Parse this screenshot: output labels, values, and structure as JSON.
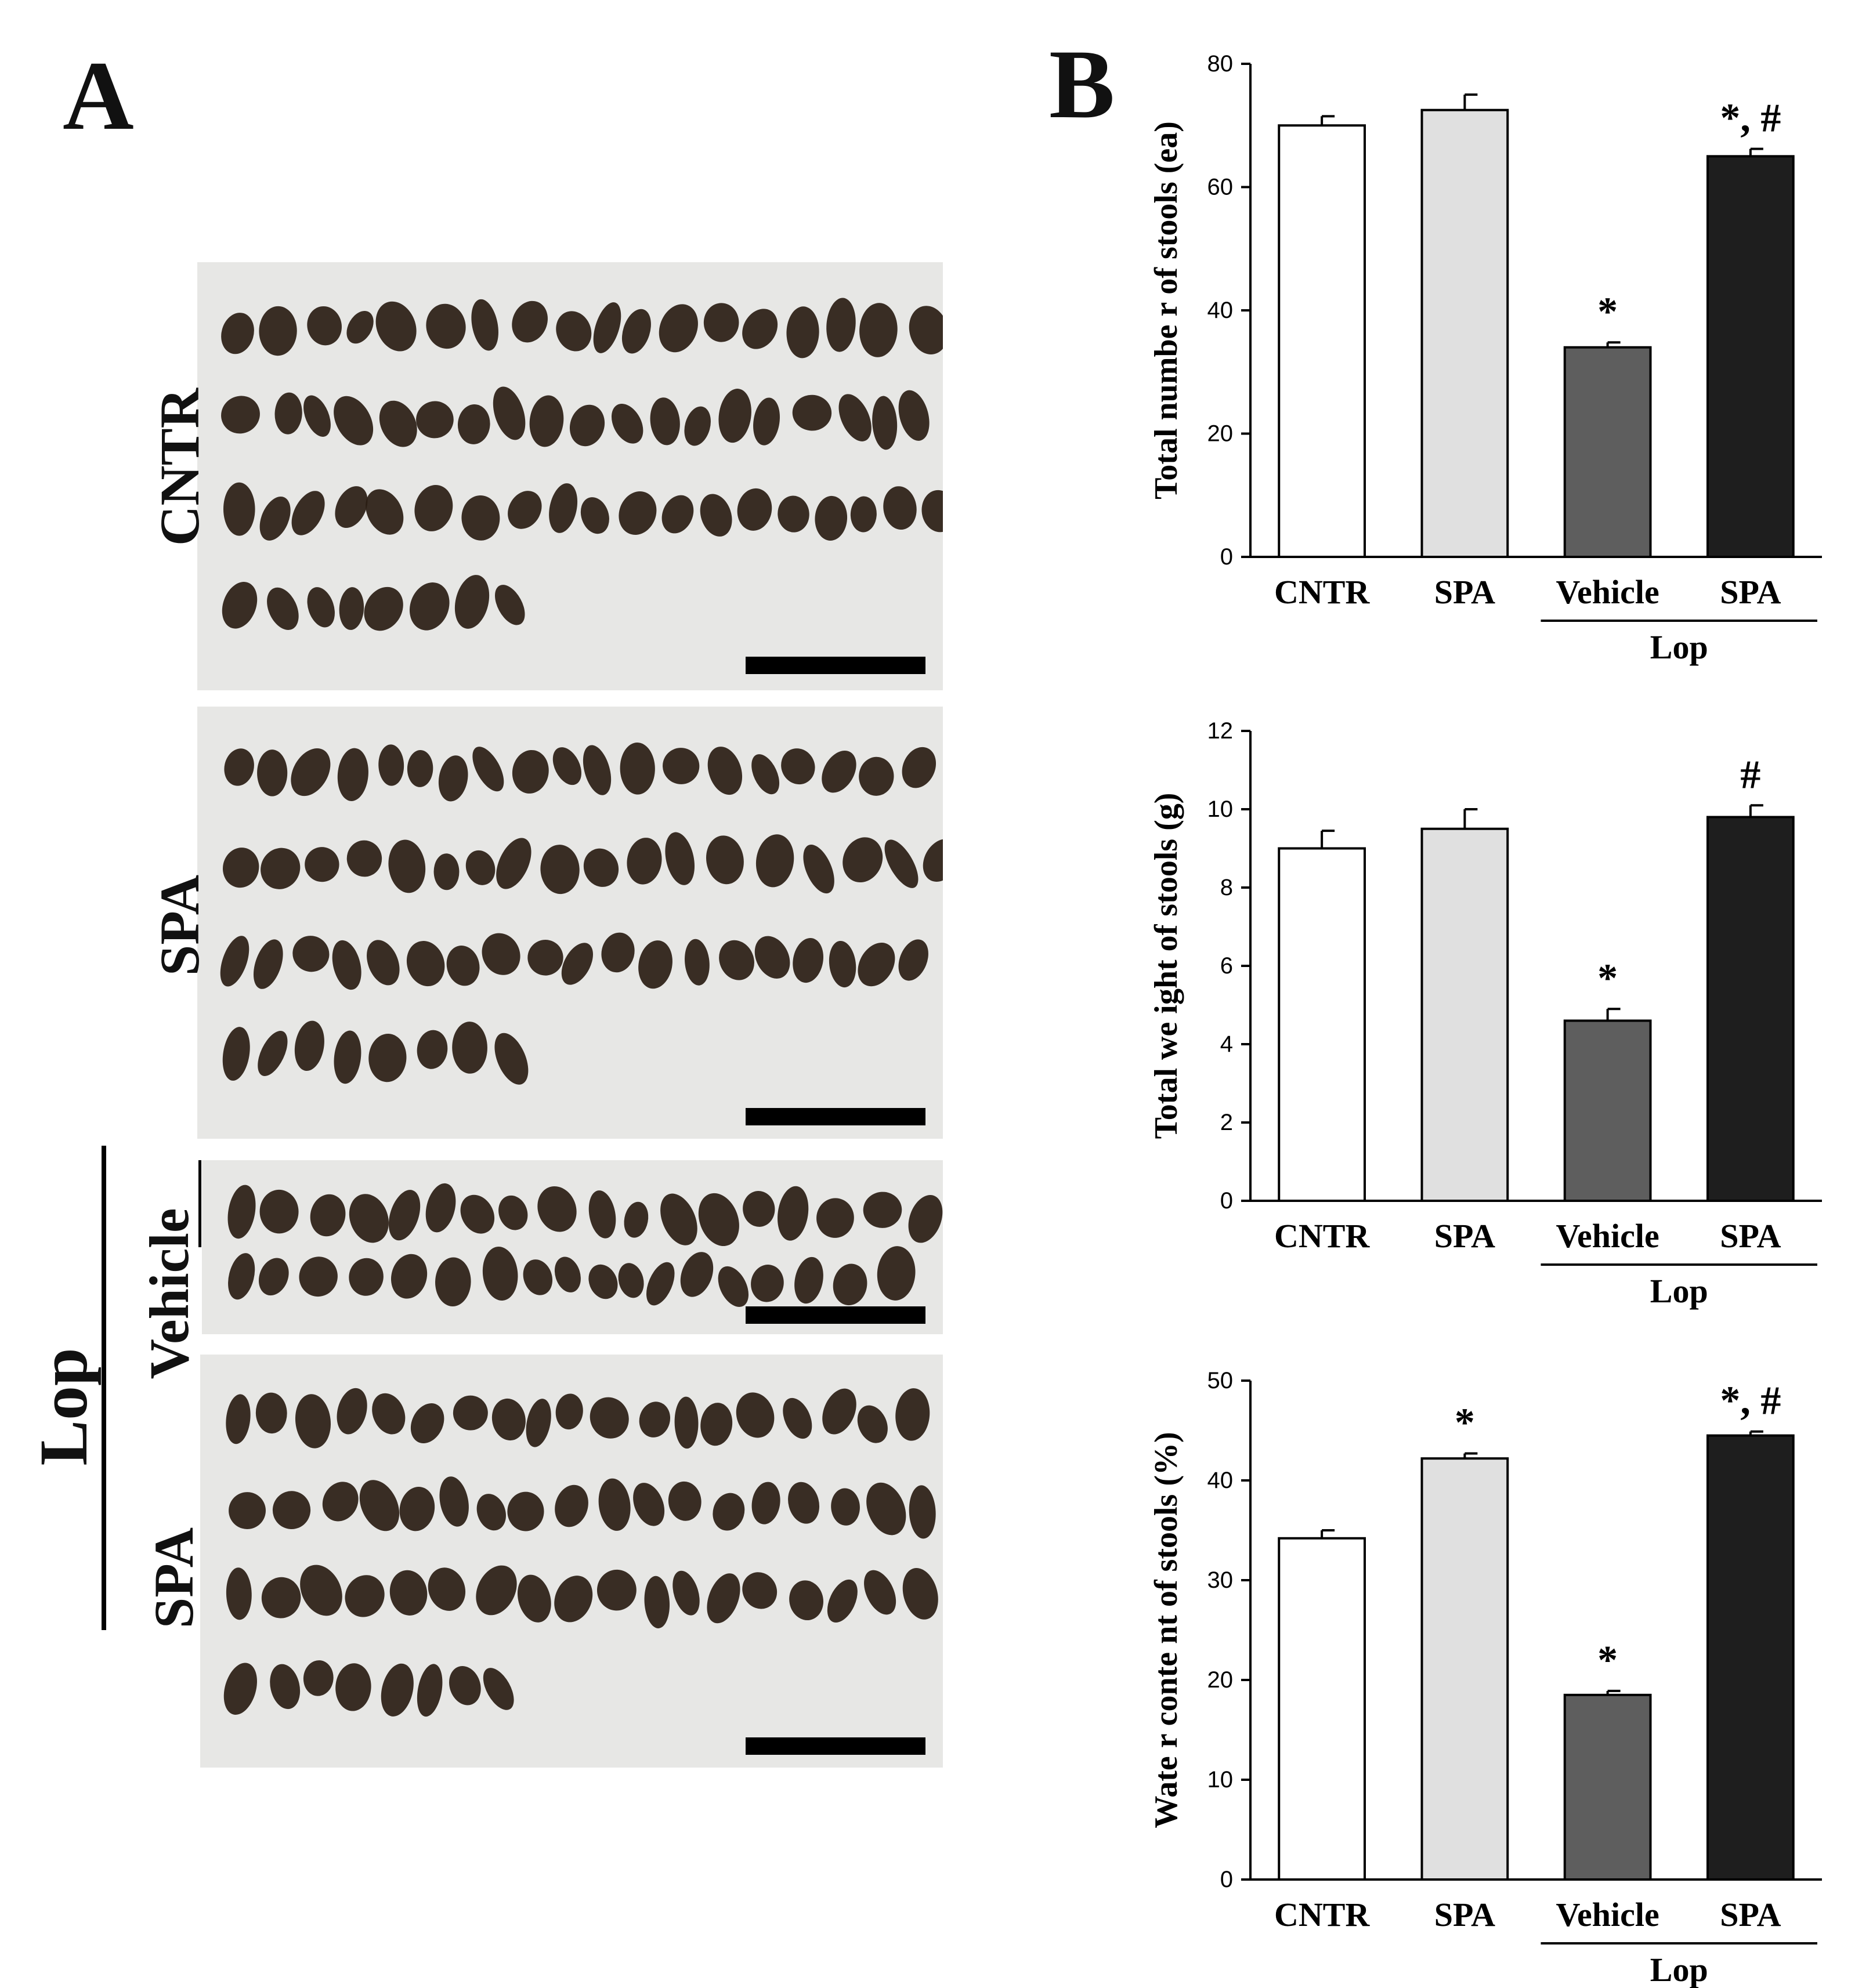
{
  "panel_labels": {
    "a": "A",
    "b": "B"
  },
  "panel_a": {
    "rows": [
      {
        "label": "CNTR"
      },
      {
        "label": "SPA"
      },
      {
        "label": "Vehicle"
      },
      {
        "label": "SPA"
      }
    ],
    "group_label": "Lop"
  },
  "colors": {
    "CNTR": "#ffffff",
    "SPA": "#e0e0e0",
    "Vehicle": "#5e5e5e",
    "LopSPA": "#1e1e1e",
    "stool": "#2a1d14",
    "photo_bg": "#e7e7e5"
  },
  "chart_data": [
    {
      "type": "bar",
      "title": "",
      "ylabel": "Total numbe r of stools (ea)",
      "xlabel": "",
      "ylim": [
        0,
        80
      ],
      "yticks": [
        "0",
        "20",
        "40",
        "60",
        "80"
      ],
      "categories": [
        "CNTR",
        "SPA",
        "Vehicle",
        "SPA"
      ],
      "group_label": "Lop",
      "values": [
        70,
        72.5,
        34,
        65
      ],
      "errors": [
        1.5,
        2.5,
        0.8,
        1.2
      ],
      "annotations": [
        "",
        "",
        "*",
        "*, #"
      ]
    },
    {
      "type": "bar",
      "title": "",
      "ylabel": "Total we ight of stools (g)",
      "xlabel": "",
      "ylim": [
        0,
        12
      ],
      "yticks": [
        "0",
        "2",
        "4",
        "6",
        "8",
        "10",
        "12"
      ],
      "categories": [
        "CNTR",
        "SPA",
        "Vehicle",
        "SPA"
      ],
      "group_label": "Lop",
      "values": [
        9.0,
        9.5,
        4.6,
        9.8
      ],
      "errors": [
        0.45,
        0.5,
        0.3,
        0.3
      ],
      "annotations": [
        "",
        "",
        "*",
        "#"
      ]
    },
    {
      "type": "bar",
      "title": "",
      "ylabel": "Wate r conte nt of stools (%)",
      "xlabel": "",
      "ylim": [
        0,
        50
      ],
      "yticks": [
        "0",
        "10",
        "20",
        "30",
        "40",
        "50"
      ],
      "categories": [
        "CNTR",
        "SPA",
        "Vehicle",
        "SPA"
      ],
      "group_label": "Lop",
      "values": [
        34.2,
        42.2,
        18.5,
        44.5
      ],
      "errors": [
        0.8,
        0.5,
        0.4,
        0.4
      ],
      "annotations": [
        "",
        "*",
        "*",
        "*, #"
      ]
    }
  ]
}
